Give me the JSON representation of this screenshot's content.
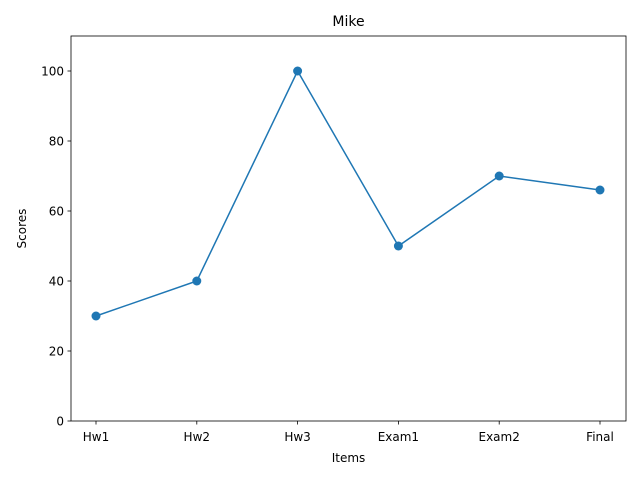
{
  "chart_data": {
    "type": "line",
    "title": "Mike",
    "xlabel": "Items",
    "ylabel": "Scores",
    "categories": [
      "Hw1",
      "Hw2",
      "Hw3",
      "Exam1",
      "Exam2",
      "Final"
    ],
    "values": [
      30,
      40,
      100,
      50,
      70,
      66
    ],
    "ylim": [
      0,
      110
    ],
    "yticks": [
      0,
      20,
      40,
      60,
      80,
      100
    ],
    "grid": false,
    "marker": "circle",
    "color": "#1f77b4"
  }
}
